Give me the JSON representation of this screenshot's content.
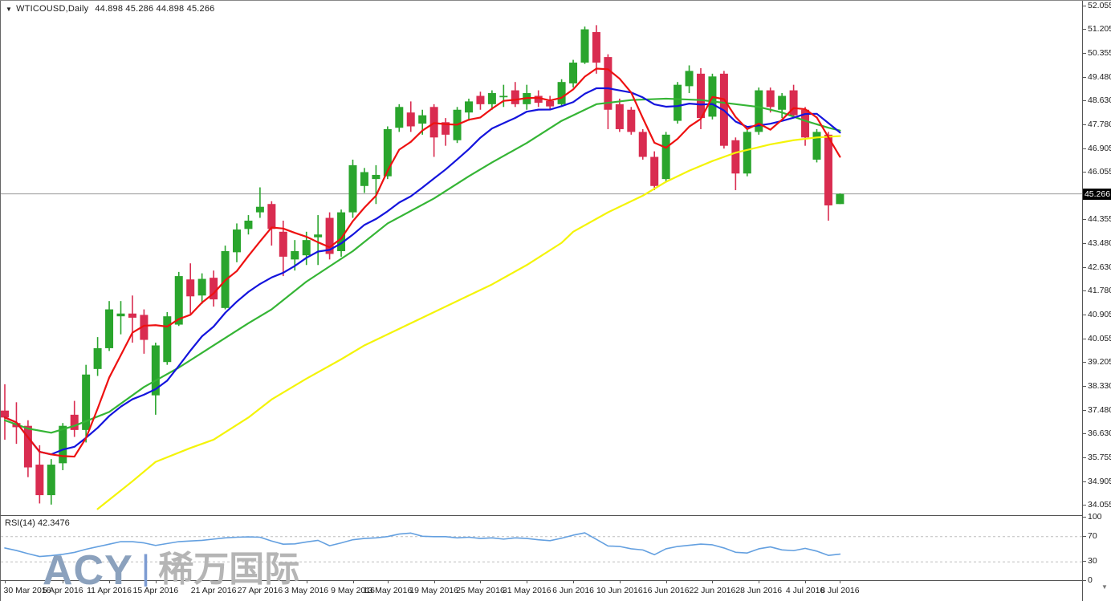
{
  "window": {
    "dropdown_icon": "▼",
    "title_symbol": "WTICOUSD,Daily",
    "title_ohlc": "44.898 45.286 44.898 45.266"
  },
  "watermark": {
    "brand": "ACY",
    "separator": "|",
    "cn": "稀万国际"
  },
  "colors": {
    "candle_up": "#2aa52d",
    "candle_down": "#d92c50",
    "ma_fast": "#ee1111",
    "ma_medium": "#1414dd",
    "ma_slow": "#35b535",
    "ma_slowest": "#f4f408",
    "price_line": "#9a9a9a",
    "price_tag_bg": "#000000",
    "rsi_line": "#64a0e0",
    "rsi_dash": "#bdbdbd",
    "axis_text": "#1c1c1c"
  },
  "chart_data": {
    "type": "candlestick",
    "instrument": "WTICOUSD",
    "timeframe": "Daily",
    "title": "WTICOUSD,Daily 44.898 45.286 44.898 45.266",
    "last_ohlc": {
      "open": 44.898,
      "high": 45.286,
      "low": 44.898,
      "close": 45.266
    },
    "price_axis": {
      "max": 52.055,
      "min": 34.055,
      "current": 45.266,
      "current_label": "45.266",
      "ticks": [
        "52.055",
        "51.205",
        "50.355",
        "49.480",
        "48.630",
        "47.780",
        "46.905",
        "46.055",
        "44.355",
        "43.480",
        "42.630",
        "41.780",
        "40.905",
        "40.055",
        "39.205",
        "38.330",
        "37.480",
        "36.630",
        "35.755",
        "34.905",
        "34.055"
      ]
    },
    "date_ticks": [
      {
        "label": "30 Mar 2016",
        "i": 0
      },
      {
        "label": "5 Apr 2016",
        "i": 5
      },
      {
        "label": "11 Apr 2016",
        "i": 9
      },
      {
        "label": "15 Apr 2016",
        "i": 13
      },
      {
        "label": "21 Apr 2016",
        "i": 18
      },
      {
        "label": "27 Apr 2016",
        "i": 22
      },
      {
        "label": "3 May 2016",
        "i": 26
      },
      {
        "label": "9 May 2016",
        "i": 30
      },
      {
        "label": "13 May 2016",
        "i": 33
      },
      {
        "label": "19 May 2016",
        "i": 37
      },
      {
        "label": "25 May 2016",
        "i": 41
      },
      {
        "label": "31 May 2016",
        "i": 45
      },
      {
        "label": "6 Jun 2016",
        "i": 49
      },
      {
        "label": "10 Jun 2016",
        "i": 53
      },
      {
        "label": "16 Jun 2016",
        "i": 57
      },
      {
        "label": "22 Jun 2016",
        "i": 61
      },
      {
        "label": "28 Jun 2016",
        "i": 65
      },
      {
        "label": "4 Jul 2016",
        "i": 69
      },
      {
        "label": "8 Jul 2016",
        "i": 72
      }
    ],
    "candles": [
      [
        37.45,
        38.4,
        36.4,
        37.2
      ],
      [
        37.0,
        37.75,
        36.25,
        36.85
      ],
      [
        36.9,
        37.1,
        35.05,
        35.4
      ],
      [
        35.5,
        36.2,
        34.1,
        34.4
      ],
      [
        34.4,
        35.7,
        34.06,
        35.5
      ],
      [
        35.55,
        37.0,
        35.3,
        36.9
      ],
      [
        37.3,
        37.8,
        36.5,
        36.75
      ],
      [
        36.75,
        39.1,
        36.3,
        38.75
      ],
      [
        38.95,
        40.1,
        38.7,
        39.7
      ],
      [
        39.7,
        41.4,
        39.6,
        41.1
      ],
      [
        40.85,
        41.4,
        40.2,
        40.95
      ],
      [
        40.95,
        41.6,
        39.9,
        40.8
      ],
      [
        40.9,
        41.1,
        39.5,
        40.0
      ],
      [
        38.0,
        39.9,
        37.3,
        39.8
      ],
      [
        39.2,
        41.0,
        39.1,
        40.85
      ],
      [
        40.55,
        42.45,
        40.5,
        42.3
      ],
      [
        42.18,
        42.76,
        40.94,
        41.57
      ],
      [
        41.6,
        42.4,
        41.3,
        42.2
      ],
      [
        42.24,
        42.5,
        41.2,
        41.46
      ],
      [
        41.15,
        43.4,
        41.1,
        43.2
      ],
      [
        43.16,
        44.2,
        42.8,
        43.98
      ],
      [
        44.0,
        44.5,
        43.8,
        44.3
      ],
      [
        44.6,
        45.5,
        44.4,
        44.8
      ],
      [
        44.9,
        45.0,
        43.4,
        44.0
      ],
      [
        43.9,
        44.3,
        42.3,
        43.0
      ],
      [
        42.9,
        43.6,
        42.5,
        43.2
      ],
      [
        43.05,
        43.9,
        42.7,
        43.6
      ],
      [
        43.7,
        44.5,
        42.7,
        43.8
      ],
      [
        44.4,
        44.6,
        42.9,
        43.1
      ],
      [
        43.2,
        44.7,
        43.0,
        44.6
      ],
      [
        44.6,
        46.5,
        44.4,
        46.3
      ],
      [
        45.55,
        46.2,
        45.3,
        46.05
      ],
      [
        45.8,
        46.3,
        44.9,
        45.95
      ],
      [
        45.9,
        47.7,
        45.8,
        47.6
      ],
      [
        47.65,
        48.5,
        47.5,
        48.4
      ],
      [
        48.2,
        48.6,
        47.5,
        47.7
      ],
      [
        47.8,
        48.3,
        47.4,
        48.1
      ],
      [
        48.4,
        48.5,
        46.6,
        47.3
      ],
      [
        47.85,
        48.0,
        47.0,
        47.4
      ],
      [
        47.2,
        48.4,
        47.1,
        48.3
      ],
      [
        48.2,
        48.7,
        47.9,
        48.6
      ],
      [
        48.8,
        48.95,
        48.3,
        48.5
      ],
      [
        48.5,
        49.0,
        48.3,
        48.9
      ],
      [
        48.75,
        49.2,
        48.4,
        48.8
      ],
      [
        49.0,
        49.3,
        48.4,
        48.5
      ],
      [
        48.5,
        49.2,
        48.3,
        48.9
      ],
      [
        48.8,
        49.0,
        48.4,
        48.55
      ],
      [
        48.62,
        48.8,
        48.3,
        48.42
      ],
      [
        48.5,
        49.4,
        48.4,
        49.3
      ],
      [
        49.25,
        50.1,
        49.1,
        50.0
      ],
      [
        50.0,
        51.3,
        49.95,
        51.2
      ],
      [
        51.1,
        51.35,
        49.6,
        50.0
      ],
      [
        50.2,
        50.3,
        47.6,
        48.3
      ],
      [
        48.5,
        48.7,
        47.5,
        47.6
      ],
      [
        48.3,
        48.4,
        47.4,
        47.5
      ],
      [
        47.5,
        47.6,
        46.5,
        46.6
      ],
      [
        46.6,
        46.8,
        45.4,
        45.55
      ],
      [
        45.8,
        47.5,
        45.7,
        47.4
      ],
      [
        47.9,
        49.3,
        47.8,
        49.2
      ],
      [
        49.15,
        49.9,
        48.9,
        49.7
      ],
      [
        49.6,
        49.8,
        47.6,
        48.0
      ],
      [
        48.05,
        49.6,
        47.95,
        49.5
      ],
      [
        49.6,
        49.7,
        46.9,
        47.0
      ],
      [
        47.2,
        47.3,
        45.4,
        46.0
      ],
      [
        46.0,
        47.6,
        45.9,
        47.5
      ],
      [
        47.5,
        49.1,
        47.4,
        49.0
      ],
      [
        49.0,
        49.1,
        48.2,
        48.4
      ],
      [
        48.3,
        48.9,
        48.0,
        48.8
      ],
      [
        49.0,
        49.2,
        48.0,
        48.1
      ],
      [
        48.3,
        48.4,
        47.0,
        47.3
      ],
      [
        46.5,
        47.6,
        46.4,
        47.5
      ],
      [
        47.4,
        47.5,
        44.3,
        44.85
      ],
      [
        44.898,
        45.286,
        44.898,
        45.266
      ]
    ],
    "ma_overlays": [
      {
        "name": "ma-fast",
        "color": "#ee1111",
        "type": "sma",
        "period": 5
      },
      {
        "name": "ma-medium",
        "color": "#1414dd",
        "type": "sma",
        "period": 13
      },
      {
        "name": "ma-slow",
        "color": "#35b535",
        "type": "points",
        "points": [
          [
            0,
            37.1
          ],
          [
            2,
            36.8
          ],
          [
            4,
            36.65
          ],
          [
            6,
            36.9
          ],
          [
            9,
            37.4
          ],
          [
            12,
            38.3
          ],
          [
            15,
            39.0
          ],
          [
            18,
            39.8
          ],
          [
            21,
            40.6
          ],
          [
            23,
            41.1
          ],
          [
            26,
            42.1
          ],
          [
            30,
            43.2
          ],
          [
            33,
            44.2
          ],
          [
            37,
            45.1
          ],
          [
            40,
            45.9
          ],
          [
            42,
            46.4
          ],
          [
            45,
            47.1
          ],
          [
            48,
            47.9
          ],
          [
            51,
            48.5
          ],
          [
            54,
            48.65
          ],
          [
            57,
            48.7
          ],
          [
            60,
            48.65
          ],
          [
            63,
            48.5
          ],
          [
            65,
            48.4
          ],
          [
            67,
            48.2
          ],
          [
            69,
            47.9
          ],
          [
            71,
            47.65
          ],
          [
            72,
            47.55
          ]
        ]
      },
      {
        "name": "ma-slowest",
        "color": "#f4f408",
        "type": "points",
        "points": [
          [
            8,
            33.9
          ],
          [
            11,
            34.9
          ],
          [
            13,
            35.6
          ],
          [
            16,
            36.1
          ],
          [
            18,
            36.4
          ],
          [
            21,
            37.2
          ],
          [
            23,
            37.85
          ],
          [
            26,
            38.6
          ],
          [
            29,
            39.3
          ],
          [
            31,
            39.8
          ],
          [
            34,
            40.4
          ],
          [
            37,
            41.0
          ],
          [
            40,
            41.6
          ],
          [
            42,
            42.0
          ],
          [
            45,
            42.7
          ],
          [
            48,
            43.5
          ],
          [
            49,
            43.9
          ],
          [
            52,
            44.6
          ],
          [
            55,
            45.2
          ],
          [
            57,
            45.7
          ],
          [
            59,
            46.1
          ],
          [
            61,
            46.45
          ],
          [
            63,
            46.75
          ],
          [
            66,
            47.05
          ],
          [
            68,
            47.2
          ],
          [
            70,
            47.3
          ],
          [
            72,
            47.35
          ]
        ]
      }
    ],
    "rsi": {
      "label": "RSI(14)",
      "value": "42.3476",
      "axis_labels": [
        "100",
        "70",
        "30",
        "0"
      ],
      "dashed_levels": [
        70,
        30
      ],
      "range": [
        0,
        100
      ],
      "series": [
        52,
        48,
        43,
        38.5,
        40,
        42,
        45,
        50,
        54,
        58,
        62,
        62,
        60,
        56,
        59,
        62,
        63,
        64,
        66,
        68,
        69,
        69.5,
        69,
        63,
        58,
        58.5,
        61.5,
        64,
        55.5,
        60,
        65,
        67,
        68,
        70,
        74,
        75.5,
        70.5,
        69.8,
        69.8,
        68,
        69,
        67,
        68,
        66,
        68,
        67,
        65,
        63.5,
        67.4,
        72.2,
        75.9,
        65.6,
        55.2,
        54.4,
        50.7,
        48.9,
        41.4,
        50.7,
        54.4,
        56.3,
        58.1,
        57,
        52,
        45.2,
        44.1,
        50.7,
        53.7,
        49,
        47.8,
        51.4,
        47,
        40.3,
        42.35
      ]
    }
  }
}
